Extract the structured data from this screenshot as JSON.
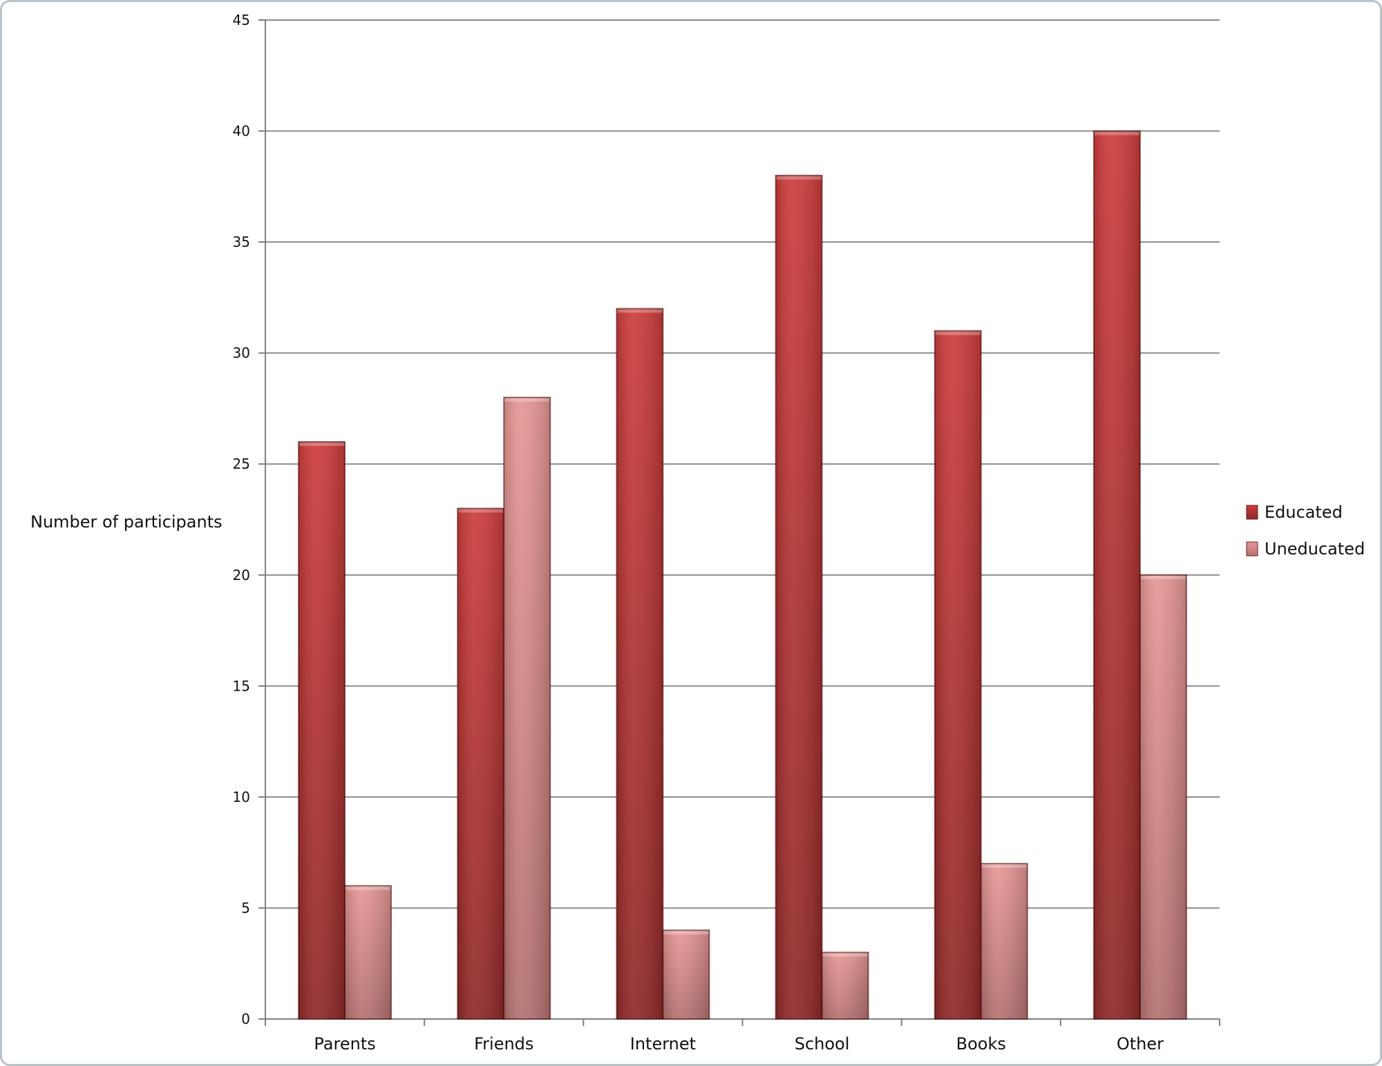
{
  "chart_data": {
    "type": "bar",
    "categories": [
      "Parents",
      "Friends",
      "Internet",
      "School",
      "Books",
      "Other"
    ],
    "series": [
      {
        "name": "Educated",
        "values": [
          26,
          23,
          32,
          38,
          31,
          40
        ],
        "color": "#b9302f"
      },
      {
        "name": "Uneducated",
        "values": [
          6,
          28,
          4,
          3,
          7,
          20
        ],
        "color": "#e29896"
      }
    ],
    "ylabel": "Number of participants",
    "xlabel": "",
    "ylim": [
      0,
      45
    ],
    "yticks": [
      0,
      5,
      10,
      15,
      20,
      25,
      30,
      35,
      40,
      45
    ],
    "grid": true,
    "legend_position": "right"
  }
}
